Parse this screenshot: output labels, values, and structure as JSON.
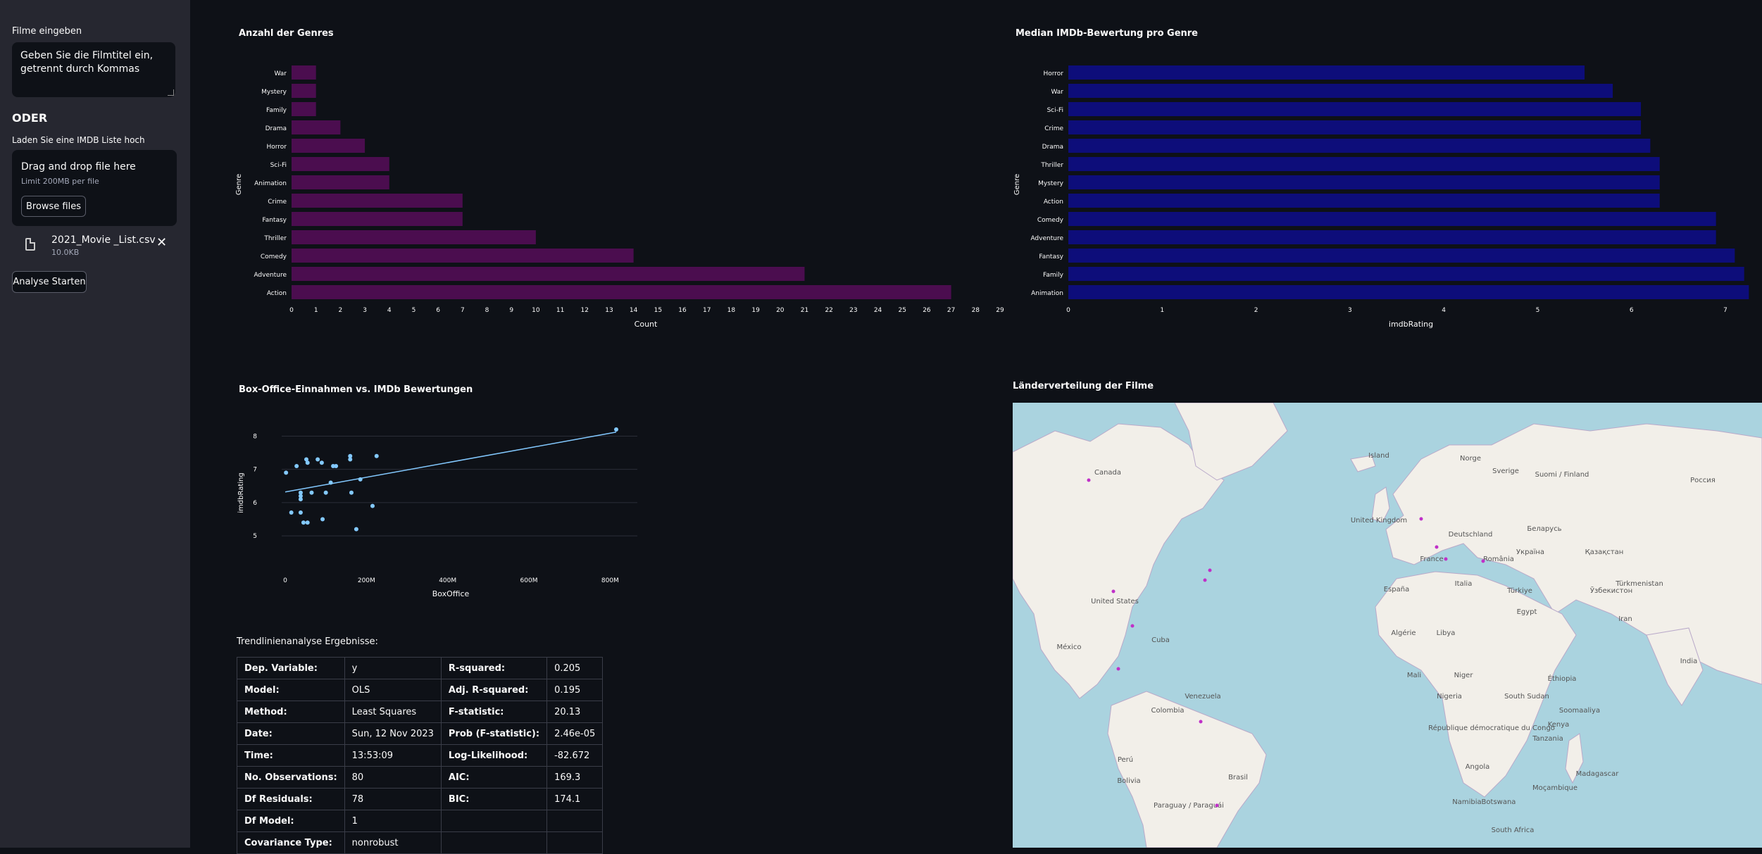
{
  "sidebar": {
    "movies_label": "Filme eingeben",
    "textarea_placeholder": "Geben Sie die Filmtitel ein, getrennt durch Kommas",
    "or_label": "ODER",
    "upload_label": "Laden Sie eine IMDB Liste hoch",
    "dropzone_title": "Drag and drop file here",
    "dropzone_limit": "Limit 200MB per file",
    "browse_label": "Browse files",
    "file_name": "2021_Movie _List.csv",
    "file_size": "10.0KB",
    "analyse_label": "Analyse Starten"
  },
  "charts": {
    "genres_title": "Anzahl der Genres",
    "rating_title": "Median IMDb-Bewertung pro Genre",
    "scatter_title": "Box-Office-Einnahmen vs. IMDb Bewertungen",
    "map_title": "Länderverteilung der Filme"
  },
  "chart_data": [
    {
      "type": "bar",
      "orientation": "horizontal",
      "title": "Anzahl der Genres",
      "xlabel": "Count",
      "ylabel": "Genre",
      "categories": [
        "War",
        "Mystery",
        "Family",
        "Drama",
        "Horror",
        "Sci-Fi",
        "Animation",
        "Crime",
        "Fantasy",
        "Thriller",
        "Comedy",
        "Adventure",
        "Action"
      ],
      "values": [
        1,
        1,
        1,
        2,
        3,
        4,
        4,
        7,
        7,
        10,
        14,
        21,
        27
      ],
      "xlim": [
        0,
        29
      ],
      "color": "#4b0d4f"
    },
    {
      "type": "bar",
      "orientation": "horizontal",
      "title": "Median IMDb-Bewertung pro Genre",
      "xlabel": "imdbRating",
      "ylabel": "Genre",
      "categories": [
        "Horror",
        "War",
        "Sci-Fi",
        "Crime",
        "Drama",
        "Thriller",
        "Mystery",
        "Action",
        "Comedy",
        "Adventure",
        "Fantasy",
        "Family",
        "Animation"
      ],
      "values": [
        5.5,
        5.8,
        6.1,
        6.1,
        6.2,
        6.3,
        6.3,
        6.3,
        6.9,
        6.9,
        7.1,
        7.2,
        7.25
      ],
      "xlim": [
        0,
        7.3
      ],
      "color": "#0d0d7a"
    },
    {
      "type": "scatter",
      "title": "Box-Office-Einnahmen vs. IMDb Bewertungen",
      "xlabel": "BoxOffice",
      "ylabel": "imdbRating",
      "xtick_labels": [
        "0",
        "200M",
        "400M",
        "600M",
        "800M"
      ],
      "ylim": [
        4.6,
        8.2
      ],
      "points": [
        {
          "x": 2,
          "y": 6.9
        },
        {
          "x": 15,
          "y": 5.7
        },
        {
          "x": 28,
          "y": 7.1
        },
        {
          "x": 38,
          "y": 6.2
        },
        {
          "x": 38,
          "y": 6.3
        },
        {
          "x": 38,
          "y": 6.1
        },
        {
          "x": 38,
          "y": 5.7
        },
        {
          "x": 45,
          "y": 5.4
        },
        {
          "x": 52,
          "y": 7.3
        },
        {
          "x": 55,
          "y": 7.2
        },
        {
          "x": 55,
          "y": 5.4
        },
        {
          "x": 65,
          "y": 6.3
        },
        {
          "x": 80,
          "y": 7.3
        },
        {
          "x": 90,
          "y": 7.2
        },
        {
          "x": 92,
          "y": 5.5
        },
        {
          "x": 100,
          "y": 6.3
        },
        {
          "x": 112,
          "y": 6.6
        },
        {
          "x": 118,
          "y": 7.1
        },
        {
          "x": 125,
          "y": 7.1
        },
        {
          "x": 160,
          "y": 7.4
        },
        {
          "x": 160,
          "y": 7.3
        },
        {
          "x": 163,
          "y": 6.3
        },
        {
          "x": 175,
          "y": 5.2
        },
        {
          "x": 185,
          "y": 6.7
        },
        {
          "x": 215,
          "y": 5.9
        },
        {
          "x": 225,
          "y": 7.4
        },
        {
          "x": 815,
          "y": 8.2
        }
      ],
      "trendline": [
        {
          "x": 0,
          "y": 6.32
        },
        {
          "x": 815,
          "y": 8.12
        }
      ],
      "color": "#83c9ff"
    }
  ],
  "trend_heading": "Trendlinienanalyse Ergebnisse:",
  "regression_table": [
    [
      "Dep. Variable:",
      "y",
      "R-squared:",
      "0.205"
    ],
    [
      "Model:",
      "OLS",
      "Adj. R-squared:",
      "0.195"
    ],
    [
      "Method:",
      "Least Squares",
      "F-statistic:",
      "20.13"
    ],
    [
      "Date:",
      "Sun, 12 Nov 2023",
      "Prob (F-statistic):",
      "2.46e-05"
    ],
    [
      "Time:",
      "13:53:09",
      "Log-Likelihood:",
      "-82.672"
    ],
    [
      "No. Observations:",
      "80",
      "AIC:",
      "169.3"
    ],
    [
      "Df Residuals:",
      "78",
      "BIC:",
      "174.1"
    ],
    [
      "Df Model:",
      "1",
      "",
      ""
    ],
    [
      "Covariance Type:",
      "nonrobust",
      "",
      ""
    ]
  ],
  "map": {
    "labels": [
      "Island",
      "Norge",
      "Sverige",
      "Suomi / Finland",
      "Россия",
      "Canada",
      "United Kingdom",
      "Deutschland",
      "Беларусь",
      "Україна",
      "Қазақстан",
      "France",
      "Italia",
      "România",
      "Türkiye",
      "Ўзбекистон",
      "España",
      "Algérie",
      "Libya",
      "Mali",
      "Niger",
      "Nigeria",
      "Éthiopia",
      "Kenya",
      "République démocratique du Congo",
      "Angola",
      "South Sudan",
      "Soomaaliya",
      "Tanzania",
      "Namibia",
      "Botswana",
      "South Africa",
      "Moçambique",
      "Madagascar",
      "Colombia",
      "Brasil",
      "Perú",
      "Bolivia",
      "Paraguay / Paraguái",
      "United States",
      "México",
      "Cuba",
      "Venezuela",
      "India",
      "Iran",
      "Türkmenistan",
      "Egypt"
    ],
    "markers": 12,
    "marker_color": "#c030c8"
  }
}
